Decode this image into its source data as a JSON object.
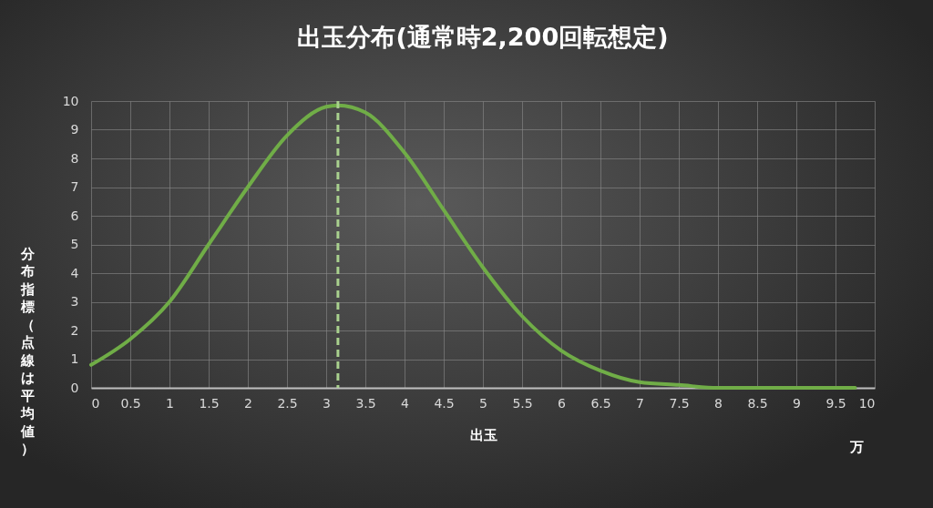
{
  "chart_data": {
    "type": "line",
    "title": "出玉分布(通常時2,200回転想定)",
    "xlabel": "出玉",
    "ylabel": "分布指標（点線は平均値）",
    "annotations": [
      "万"
    ],
    "x": [
      0,
      0.5,
      1,
      1.5,
      2,
      2.5,
      3,
      3.15,
      3.5,
      4,
      4.5,
      5,
      5.5,
      6,
      6.5,
      7,
      7.5,
      8,
      8.5,
      9,
      9.5,
      9.75
    ],
    "series": [
      {
        "color": "#70ad47",
        "values": [
          0.8,
          1.7,
          3.0,
          5.0,
          7.0,
          8.8,
          9.8,
          9.85,
          9.6,
          8.2,
          6.2,
          4.2,
          2.5,
          1.3,
          0.6,
          0.2,
          0.1,
          0,
          0,
          0,
          0,
          0
        ]
      }
    ],
    "xlim": [
      0,
      10
    ],
    "xticks": [
      0,
      0.5,
      1,
      1.5,
      2,
      2.5,
      3,
      3.5,
      4,
      4.5,
      5,
      5.5,
      6,
      6.5,
      7,
      7.5,
      8,
      8.5,
      9,
      9.5,
      10
    ],
    "ylim": [
      0,
      10
    ],
    "yticks": [
      0,
      1,
      2,
      3,
      4,
      5,
      6,
      7,
      8,
      9,
      10
    ],
    "ref_lines": [
      {
        "axis": "x",
        "value": 3.15,
        "color": "#a9d18e",
        "line_style": "dashed"
      }
    ],
    "grid": true,
    "line_style": "solid",
    "marker": "none"
  }
}
